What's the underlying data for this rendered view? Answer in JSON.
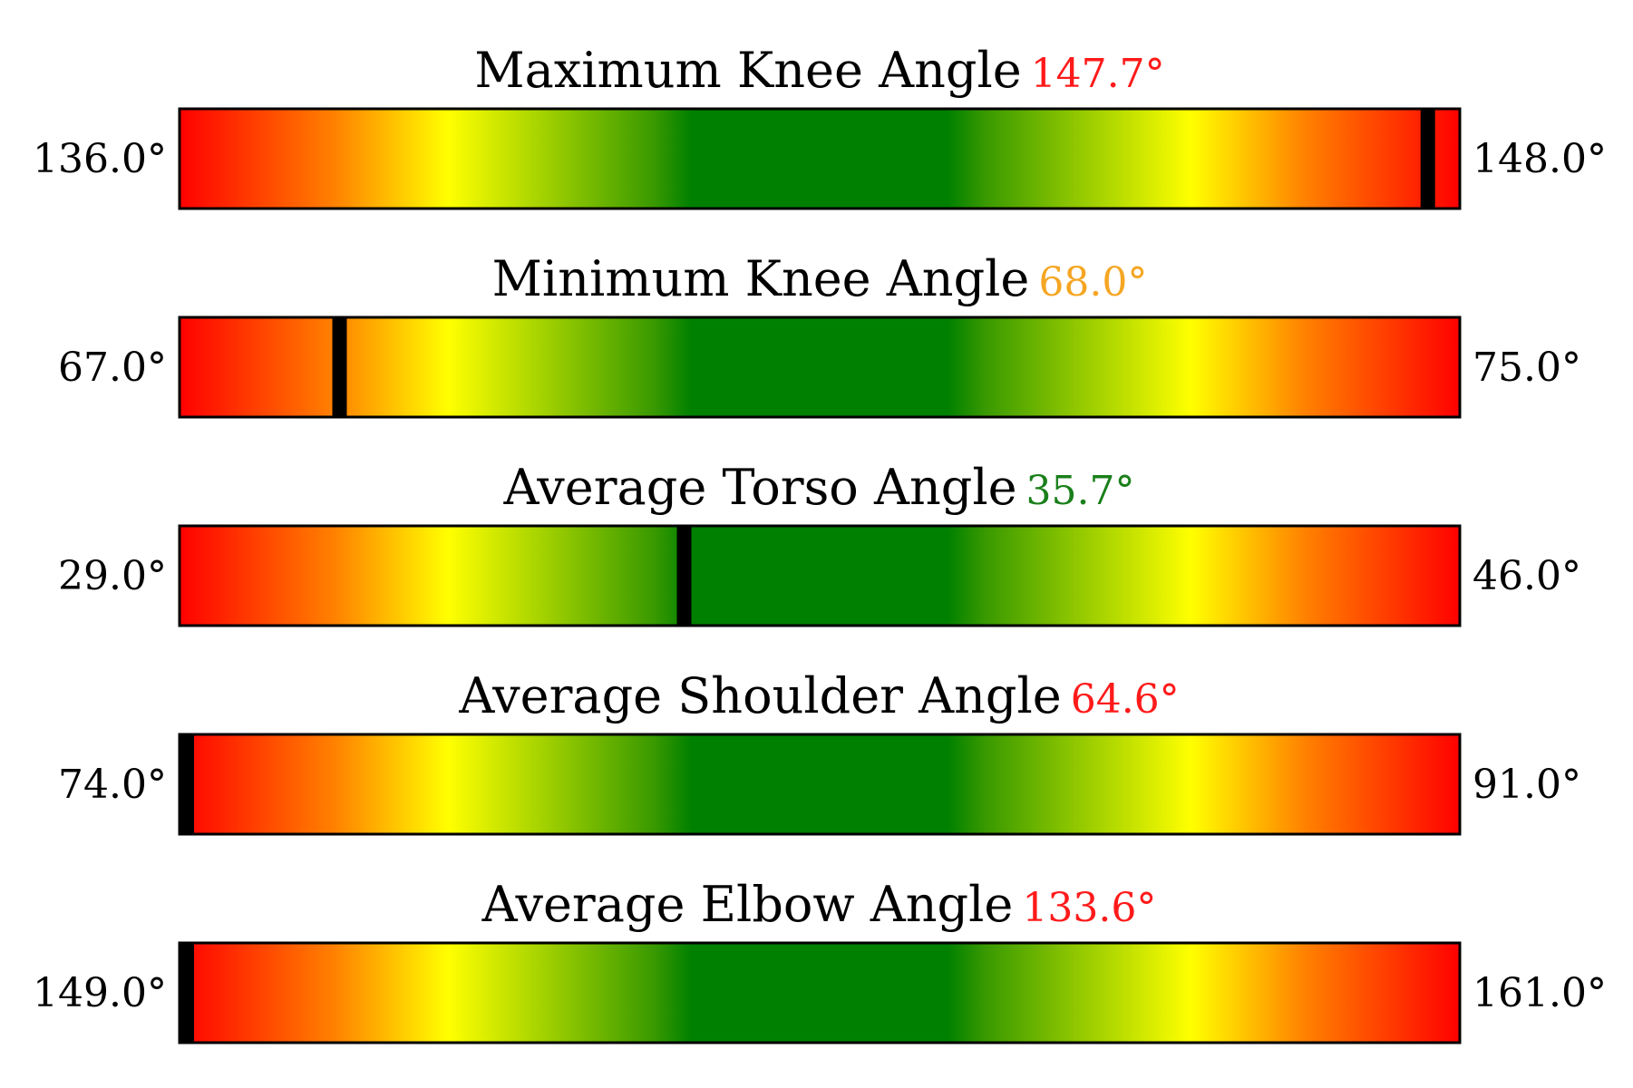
{
  "chart_data": {
    "type": "gauge",
    "color_scale": {
      "low_color": "#ff0000",
      "mid_colors": [
        "#ff8c00",
        "#ffff00",
        "#9acd00",
        "#008000"
      ],
      "optimal_color": "#008000"
    },
    "gauges": [
      {
        "title": "Maximum Knee Angle",
        "value": 147.7,
        "value_label": "147.7°",
        "value_color": "#ff1a1a",
        "min": 136.0,
        "max": 148.0,
        "min_label": "136.0°",
        "max_label": "148.0°"
      },
      {
        "title": "Minimum Knee Angle",
        "value": 68.0,
        "value_label": "68.0°",
        "value_color": "#f5a623",
        "min": 67.0,
        "max": 75.0,
        "min_label": "67.0°",
        "max_label": "75.0°"
      },
      {
        "title": "Average Torso Angle",
        "value": 35.7,
        "value_label": "35.7°",
        "value_color": "#1a7f1a",
        "min": 29.0,
        "max": 46.0,
        "min_label": "29.0°",
        "max_label": "46.0°"
      },
      {
        "title": "Average Shoulder Angle",
        "value": 64.6,
        "value_label": "64.6°",
        "value_color": "#ff1a1a",
        "min": 74.0,
        "max": 91.0,
        "min_label": "74.0°",
        "max_label": "91.0°"
      },
      {
        "title": "Average Elbow Angle",
        "value": 133.6,
        "value_label": "133.6°",
        "value_color": "#ff1a1a",
        "min": 149.0,
        "max": 161.0,
        "min_label": "149.0°",
        "max_label": "161.0°"
      }
    ]
  }
}
